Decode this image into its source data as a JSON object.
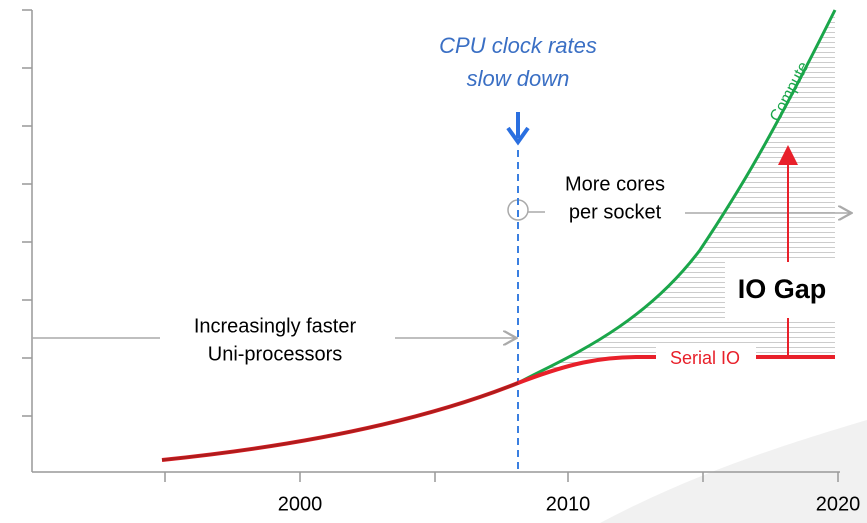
{
  "annotations": {
    "cpu_line1": "CPU clock rates",
    "cpu_line2": "slow down",
    "cores_line1": "More cores",
    "cores_line2": "per socket",
    "uni_line1": "Increasingly faster",
    "uni_line2": "Uni-processors",
    "io_gap": "IO Gap",
    "serial_io": "Serial IO",
    "compute": "Compute"
  },
  "x_axis": {
    "labels": [
      "2000",
      "2010",
      "2020"
    ]
  }
}
